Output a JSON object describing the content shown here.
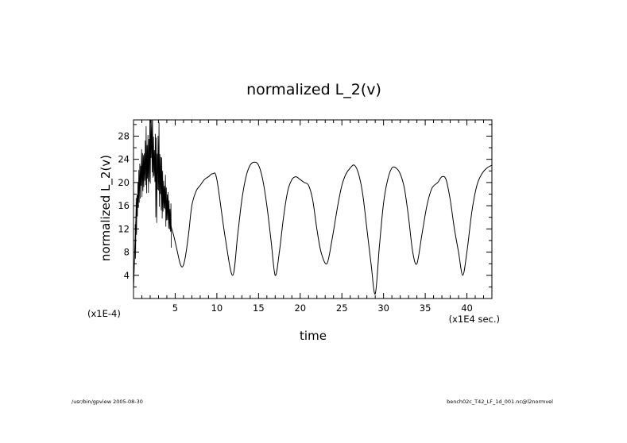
{
  "chart_data": {
    "type": "line",
    "title": "normalized L_2(v)",
    "xlabel": "time",
    "ylabel": "normalized L_2(v)",
    "x_scale_label": "(x1E4 sec.)",
    "y_scale_label": "(x1E-4)",
    "xlim": [
      0,
      43
    ],
    "ylim": [
      0,
      30.8
    ],
    "x_ticks": [
      5,
      10,
      15,
      20,
      25,
      30,
      35,
      40
    ],
    "y_ticks": [
      4,
      8,
      12,
      16,
      20,
      24,
      28
    ],
    "grid": false,
    "series": [
      {
        "x": [
          0.0,
          0.3,
          0.6,
          0.9,
          1.2,
          1.5,
          1.8,
          2.1,
          2.4,
          2.7,
          3.0,
          3.3,
          3.6,
          3.9,
          4.2,
          4.5,
          4.8,
          5.2,
          5.6,
          5.9,
          6.2,
          6.6,
          7.0,
          7.5,
          8.0,
          8.5,
          9.0,
          9.5,
          10.0,
          11.0,
          11.9,
          12.5,
          13.0,
          13.5,
          14.0,
          14.5,
          15.0,
          15.5,
          16.0,
          16.5,
          17.0,
          17.5,
          18.0,
          18.5,
          19.0,
          19.5,
          20.0,
          20.5,
          21.0,
          21.5,
          22.0,
          22.5,
          23.2,
          23.8,
          24.5,
          25.0,
          25.5,
          26.0,
          26.5,
          27.0,
          27.5,
          28.0,
          28.5,
          29.0,
          29.5,
          30.0,
          30.5,
          31.0,
          31.5,
          32.0,
          32.5,
          33.0,
          33.5,
          34.0,
          34.6,
          35.2,
          35.8,
          36.5,
          37.0,
          37.5,
          38.0,
          38.5,
          39.0,
          39.5,
          40.0,
          40.6,
          41.2,
          41.8,
          42.4,
          43.0
        ],
        "y": [
          1.5,
          14.0,
          19.0,
          21.5,
          22.0,
          24.0,
          23.0,
          28.0,
          24.5,
          20.0,
          24.0,
          19.5,
          18.0,
          16.5,
          15.0,
          12.5,
          11.0,
          8.5,
          6.0,
          5.5,
          7.0,
          11.0,
          16.0,
          18.5,
          19.5,
          20.5,
          21.0,
          21.5,
          20.5,
          10.5,
          4.0,
          11.0,
          17.0,
          21.0,
          23.0,
          23.5,
          23.0,
          20.5,
          16.0,
          10.0,
          4.0,
          8.0,
          14.0,
          18.5,
          20.5,
          21.0,
          20.5,
          20.0,
          19.5,
          17.0,
          12.0,
          8.0,
          6.0,
          10.0,
          16.0,
          19.5,
          21.5,
          22.5,
          23.0,
          21.5,
          18.0,
          12.0,
          6.0,
          0.8,
          9.0,
          16.5,
          20.5,
          22.5,
          22.5,
          21.5,
          19.0,
          14.0,
          8.0,
          6.0,
          11.0,
          16.0,
          19.0,
          20.0,
          21.0,
          20.5,
          17.0,
          12.0,
          8.0,
          4.0,
          8.0,
          15.0,
          19.5,
          21.5,
          22.5,
          23.0
        ]
      }
    ]
  },
  "footer": {
    "left": "/usr/bin/gpview  2005-08-30",
    "right": "bench02c_T42_LF_1d_001.nc@l2normvel"
  }
}
